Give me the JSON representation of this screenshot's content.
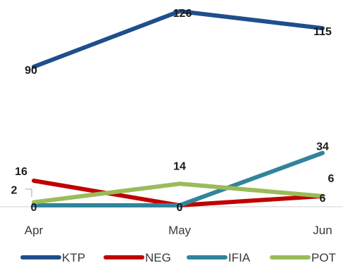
{
  "chart_data": {
    "type": "line",
    "categories": [
      "Apr",
      "May",
      "Jun"
    ],
    "series": [
      {
        "name": "KTP",
        "values": [
          90,
          126,
          115
        ],
        "color": "#1f4e8c"
      },
      {
        "name": "NEG",
        "values": [
          16,
          0,
          6
        ],
        "color": "#c00000"
      },
      {
        "name": "IFIA",
        "values": [
          0,
          0,
          34
        ],
        "color": "#31849b"
      },
      {
        "name": "POT",
        "values": [
          2,
          14,
          6
        ],
        "color": "#9bbb59"
      }
    ],
    "title": "",
    "xlabel": "",
    "ylabel": "",
    "legend_position": "bottom",
    "grid": false,
    "data_labels": true
  }
}
